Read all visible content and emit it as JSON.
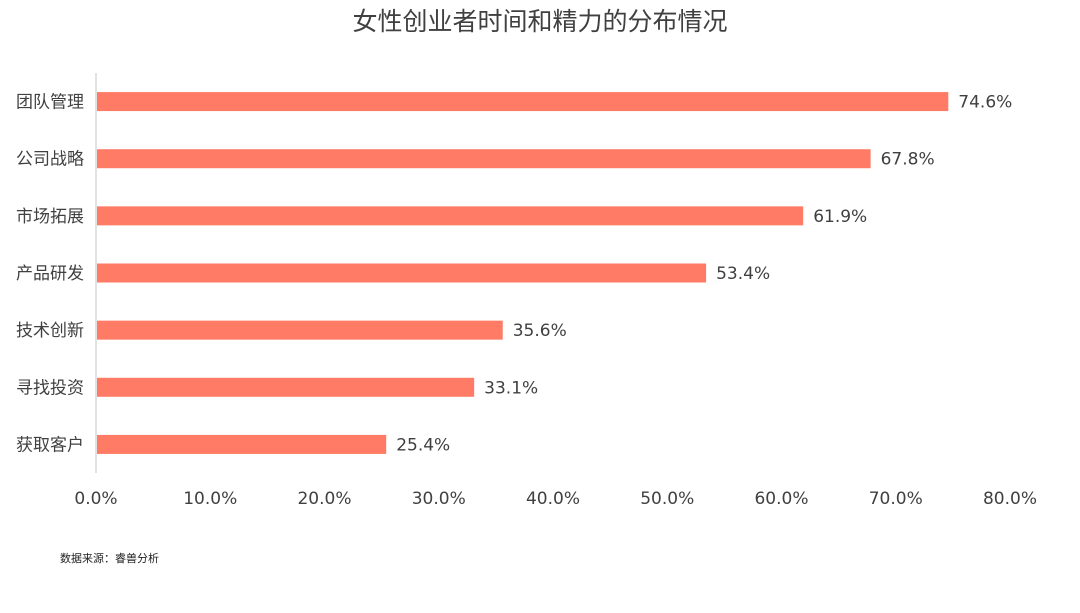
{
  "chart_data": {
    "type": "bar",
    "orientation": "horizontal",
    "title": "女性创业者时间和精力的分布情况",
    "categories": [
      "团队管理",
      "公司战略",
      "市场拓展",
      "产品研发",
      "技术创新",
      "寻找投资",
      "获取客户"
    ],
    "values": [
      74.6,
      67.8,
      61.9,
      53.4,
      35.6,
      33.1,
      25.4
    ],
    "data_labels": [
      "74.6%",
      "67.8%",
      "61.9%",
      "53.4%",
      "35.6%",
      "33.1%",
      "25.4%"
    ],
    "xlim": [
      0,
      80
    ],
    "x_ticks": [
      "0.0%",
      "10.0%",
      "20.0%",
      "30.0%",
      "40.0%",
      "50.0%",
      "60.0%",
      "70.0%",
      "80.0%"
    ],
    "grid": false,
    "colors": {
      "bar": "#ff7b65",
      "axis": "#d9d9d9",
      "text": "#404040"
    }
  },
  "footer": {
    "source": "数据来源：睿兽分析"
  }
}
